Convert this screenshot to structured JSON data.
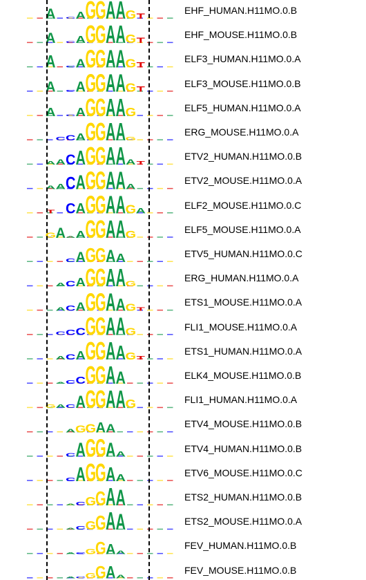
{
  "figure": {
    "guides": [
      "left-boundary",
      "right-boundary"
    ]
  },
  "colors": {
    "A": "#109648",
    "C": "#0000ff",
    "G": "#ffd700",
    "T": "#e00000"
  },
  "motifs": [
    {
      "label": "EHF_HUMAN.H11MO.0.B",
      "logo": [
        [
          "A",
          0.6
        ],
        [
          "",
          0
        ],
        [
          "c",
          0.1
        ],
        [
          "A",
          0.4
        ],
        [
          "G",
          1.0
        ],
        [
          "G",
          1.0
        ],
        [
          "A",
          1.0
        ],
        [
          "A",
          1.0
        ],
        [
          "G",
          0.5
        ],
        [
          "T",
          0.3
        ],
        [
          "",
          0
        ]
      ]
    },
    {
      "label": "EHF_MOUSE.H11MO.0.B",
      "logo": [
        [
          "A",
          0.6
        ],
        [
          "",
          0
        ],
        [
          "c",
          0.1
        ],
        [
          "A",
          0.4
        ],
        [
          "G",
          1.0
        ],
        [
          "G",
          1.0
        ],
        [
          "A",
          1.0
        ],
        [
          "A",
          1.0
        ],
        [
          "G",
          0.5
        ],
        [
          "T",
          0.3
        ],
        [
          "",
          0
        ]
      ]
    },
    {
      "label": "ELF3_HUMAN.H11MO.0.A",
      "logo": [
        [
          "A",
          0.7
        ],
        [
          "",
          0
        ],
        [
          "c",
          0.1
        ],
        [
          "A",
          0.5
        ],
        [
          "G",
          1.0
        ],
        [
          "G",
          1.0
        ],
        [
          "A",
          1.0
        ],
        [
          "A",
          1.0
        ],
        [
          "G",
          0.5
        ],
        [
          "T",
          0.3
        ],
        [
          "",
          0
        ]
      ]
    },
    {
      "label": "ELF3_MOUSE.H11MO.0.B",
      "logo": [
        [
          "A",
          0.6
        ],
        [
          "",
          0
        ],
        [
          "c",
          0.1
        ],
        [
          "A",
          0.6
        ],
        [
          "G",
          1.0
        ],
        [
          "G",
          1.0
        ],
        [
          "A",
          1.0
        ],
        [
          "A",
          1.0
        ],
        [
          "G",
          0.5
        ],
        [
          "T",
          0.3
        ],
        [
          "",
          0
        ]
      ]
    },
    {
      "label": "ELF5_HUMAN.H11MO.0.A",
      "logo": [
        [
          "A",
          0.5
        ],
        [
          "",
          0
        ],
        [
          "c",
          0.1
        ],
        [
          "A",
          0.5
        ],
        [
          "G",
          1.0
        ],
        [
          "G",
          1.0
        ],
        [
          "A",
          1.0
        ],
        [
          "A",
          1.0
        ],
        [
          "G",
          0.5
        ],
        [
          "",
          0
        ],
        [
          "",
          0
        ]
      ]
    },
    {
      "label": "ERG_MOUSE.H11MO.0.A",
      "logo": [
        [
          "",
          0
        ],
        [
          "c",
          0.2
        ],
        [
          "C",
          0.3
        ],
        [
          "A",
          0.4
        ],
        [
          "G",
          1.0
        ],
        [
          "G",
          1.0
        ],
        [
          "A",
          1.0
        ],
        [
          "A",
          1.0
        ],
        [
          "g",
          0.2
        ],
        [
          "",
          0
        ],
        [
          "",
          0
        ]
      ]
    },
    {
      "label": "ETV2_HUMAN.H11MO.0.B",
      "logo": [
        [
          "a",
          0.2
        ],
        [
          "A",
          0.3
        ],
        [
          "C",
          0.6
        ],
        [
          "A",
          0.8
        ],
        [
          "G",
          1.0
        ],
        [
          "G",
          1.0
        ],
        [
          "A",
          1.0
        ],
        [
          "A",
          1.0
        ],
        [
          "a",
          0.3
        ],
        [
          "t",
          0.2
        ],
        [
          "",
          0
        ]
      ]
    },
    {
      "label": "ETV2_MOUSE.H11MO.0.A",
      "logo": [
        [
          "a",
          0.2
        ],
        [
          "A",
          0.3
        ],
        [
          "C",
          0.7
        ],
        [
          "A",
          0.8
        ],
        [
          "G",
          1.0
        ],
        [
          "G",
          1.0
        ],
        [
          "A",
          1.0
        ],
        [
          "A",
          1.0
        ],
        [
          "a",
          0.3
        ],
        [
          "",
          0
        ],
        [
          "",
          0
        ]
      ]
    },
    {
      "label": "ELF2_MOUSE.H11MO.0.C",
      "logo": [
        [
          "T",
          0.2
        ],
        [
          "",
          0
        ],
        [
          "C",
          0.6
        ],
        [
          "A",
          0.6
        ],
        [
          "G",
          1.0
        ],
        [
          "G",
          1.0
        ],
        [
          "A",
          1.0
        ],
        [
          "A",
          1.0
        ],
        [
          "G",
          0.5
        ],
        [
          "A",
          0.3
        ],
        [
          "",
          0
        ]
      ]
    },
    {
      "label": "ELF5_MOUSE.H11MO.0.A",
      "logo": [
        [
          "G",
          0.3
        ],
        [
          "A",
          0.6
        ],
        [
          "a",
          0.1
        ],
        [
          "A",
          0.4
        ],
        [
          "G",
          1.0
        ],
        [
          "G",
          1.0
        ],
        [
          "A",
          1.0
        ],
        [
          "A",
          1.0
        ],
        [
          "G",
          0.4
        ],
        [
          "",
          0
        ],
        [
          "",
          0
        ]
      ]
    },
    {
      "label": "ETV5_HUMAN.H11MO.0.C",
      "logo": [
        [
          "",
          0
        ],
        [
          "",
          0
        ],
        [
          "c",
          0.2
        ],
        [
          "A",
          0.6
        ],
        [
          "G",
          0.8
        ],
        [
          "G",
          0.8
        ],
        [
          "A",
          0.7
        ],
        [
          "A",
          0.5
        ],
        [
          "",
          0
        ],
        [
          "",
          0
        ],
        [
          "",
          0
        ]
      ]
    },
    {
      "label": "ERG_HUMAN.H11MO.0.A",
      "logo": [
        [
          "",
          0
        ],
        [
          "a",
          0.2
        ],
        [
          "c",
          0.3
        ],
        [
          "A",
          0.5
        ],
        [
          "G",
          1.0
        ],
        [
          "G",
          1.0
        ],
        [
          "A",
          1.0
        ],
        [
          "A",
          1.0
        ],
        [
          "g",
          0.3
        ],
        [
          "",
          0
        ],
        [
          "",
          0
        ]
      ]
    },
    {
      "label": "ETS1_MOUSE.H11MO.0.A",
      "logo": [
        [
          "",
          0
        ],
        [
          "a",
          0.2
        ],
        [
          "c",
          0.3
        ],
        [
          "A",
          0.5
        ],
        [
          "G",
          1.0
        ],
        [
          "G",
          1.0
        ],
        [
          "A",
          1.0
        ],
        [
          "A",
          0.7
        ],
        [
          "G",
          0.4
        ],
        [
          "T",
          0.2
        ],
        [
          "",
          0
        ]
      ]
    },
    {
      "label": "FLI1_MOUSE.H11MO.0.A",
      "logo": [
        [
          "",
          0
        ],
        [
          "c",
          0.2
        ],
        [
          "C",
          0.3
        ],
        [
          "C",
          0.4
        ],
        [
          "G",
          1.0
        ],
        [
          "G",
          1.0
        ],
        [
          "A",
          1.0
        ],
        [
          "A",
          1.0
        ],
        [
          "G",
          0.4
        ],
        [
          "",
          0
        ],
        [
          "",
          0
        ]
      ]
    },
    {
      "label": "ETS1_HUMAN.H11MO.0.A",
      "logo": [
        [
          "",
          0
        ],
        [
          "a",
          0.2
        ],
        [
          "c",
          0.3
        ],
        [
          "A",
          0.5
        ],
        [
          "G",
          1.0
        ],
        [
          "G",
          1.0
        ],
        [
          "A",
          1.0
        ],
        [
          "A",
          0.8
        ],
        [
          "G",
          0.4
        ],
        [
          "T",
          0.2
        ],
        [
          "",
          0
        ]
      ]
    },
    {
      "label": "ELK4_MOUSE.H11MO.0.B",
      "logo": [
        [
          "",
          0
        ],
        [
          "a",
          0.1
        ],
        [
          "c",
          0.2
        ],
        [
          "C",
          0.4
        ],
        [
          "G",
          1.0
        ],
        [
          "G",
          1.0
        ],
        [
          "A",
          1.0
        ],
        [
          "A",
          0.7
        ],
        [
          "",
          0
        ],
        [
          "",
          0
        ],
        [
          "",
          0
        ]
      ]
    },
    {
      "label": "FLI1_HUMAN.H11MO.0.A",
      "logo": [
        [
          "g",
          0.2
        ],
        [
          "a",
          0.2
        ],
        [
          "c",
          0.2
        ],
        [
          "A",
          0.7
        ],
        [
          "G",
          1.0
        ],
        [
          "G",
          1.0
        ],
        [
          "A",
          1.0
        ],
        [
          "A",
          1.0
        ],
        [
          "G",
          0.5
        ],
        [
          "",
          0
        ],
        [
          "",
          0
        ]
      ]
    },
    {
      "label": "ETV4_MOUSE.H11MO.0.B",
      "logo": [
        [
          "",
          0
        ],
        [
          "",
          0
        ],
        [
          "a",
          0.2
        ],
        [
          "G",
          0.4
        ],
        [
          "G",
          0.5
        ],
        [
          "A",
          0.6
        ],
        [
          "A",
          0.5
        ],
        [
          "",
          0
        ],
        [
          "",
          0
        ],
        [
          "",
          0
        ],
        [
          "",
          0
        ]
      ]
    },
    {
      "label": "ETV4_HUMAN.H11MO.0.B",
      "logo": [
        [
          "",
          0
        ],
        [
          "",
          0
        ],
        [
          "c",
          0.2
        ],
        [
          "A",
          0.8
        ],
        [
          "G",
          1.0
        ],
        [
          "G",
          1.0
        ],
        [
          "A",
          0.8
        ],
        [
          "A",
          0.3
        ],
        [
          "",
          0
        ],
        [
          "",
          0
        ],
        [
          "",
          0
        ]
      ]
    },
    {
      "label": "ETV6_MOUSE.H11MO.0.C",
      "logo": [
        [
          "",
          0
        ],
        [
          "",
          0
        ],
        [
          "c",
          0.2
        ],
        [
          "A",
          0.8
        ],
        [
          "G",
          1.0
        ],
        [
          "G",
          1.0
        ],
        [
          "A",
          0.8
        ],
        [
          "A",
          0.4
        ],
        [
          "",
          0
        ],
        [
          "",
          0
        ],
        [
          "",
          0
        ]
      ]
    },
    {
      "label": "ETS2_HUMAN.H11MO.0.B",
      "logo": [
        [
          "",
          0
        ],
        [
          "",
          0
        ],
        [
          "a",
          0.1
        ],
        [
          "c",
          0.2
        ],
        [
          "G",
          0.5
        ],
        [
          "G",
          0.8
        ],
        [
          "A",
          1.0
        ],
        [
          "A",
          0.9
        ],
        [
          "",
          0
        ],
        [
          "",
          0
        ],
        [
          "",
          0
        ]
      ]
    },
    {
      "label": "ETS2_MOUSE.H11MO.0.A",
      "logo": [
        [
          "",
          0
        ],
        [
          "",
          0
        ],
        [
          "a",
          0.1
        ],
        [
          "c",
          0.2
        ],
        [
          "G",
          0.5
        ],
        [
          "G",
          0.8
        ],
        [
          "A",
          1.0
        ],
        [
          "A",
          0.9
        ],
        [
          "",
          0
        ],
        [
          "",
          0
        ],
        [
          "",
          0
        ]
      ]
    },
    {
      "label": "FEV_HUMAN.H11MO.0.B",
      "logo": [
        [
          "",
          0
        ],
        [
          "",
          0
        ],
        [
          "a",
          0.1
        ],
        [
          "c",
          0.1
        ],
        [
          "G",
          0.3
        ],
        [
          "G",
          0.7
        ],
        [
          "A",
          0.6
        ],
        [
          "a",
          0.2
        ],
        [
          "",
          0
        ],
        [
          "",
          0
        ],
        [
          "",
          0
        ]
      ]
    },
    {
      "label": "FEV_MOUSE.H11MO.0.B",
      "logo": [
        [
          "",
          0
        ],
        [
          "",
          0
        ],
        [
          "a",
          0.1
        ],
        [
          "c",
          0.1
        ],
        [
          "G",
          0.3
        ],
        [
          "G",
          0.7
        ],
        [
          "A",
          0.7
        ],
        [
          "a",
          0.2
        ],
        [
          "",
          0
        ],
        [
          "",
          0
        ],
        [
          "",
          0
        ]
      ]
    }
  ]
}
